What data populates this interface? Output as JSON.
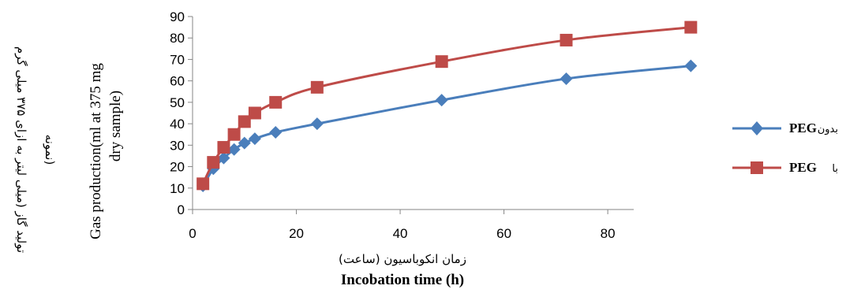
{
  "chart_data": {
    "type": "line",
    "title": "",
    "xlabel_fa": "زمان انکوباسیون (ساعت)",
    "xlabel_en": "Incobation time (h)",
    "ylabel_fa_line1": "تولید گاز (میلی لیتر به ازای ۳۷۵ میلی گرم",
    "ylabel_fa_line2": "نمونه)",
    "ylabel_en_line1": "Gas production(ml at 375 mg",
    "ylabel_en_line2": "dry sample)",
    "xlim": [
      0,
      85
    ],
    "ylim": [
      0,
      90
    ],
    "x_ticks": [
      0,
      20,
      40,
      60,
      80
    ],
    "y_ticks": [
      0,
      10,
      20,
      30,
      40,
      50,
      60,
      70,
      80,
      90
    ],
    "legend_position": "right",
    "series": [
      {
        "name": "PEG",
        "name_prefix_fa": "بدون",
        "color": "#4a7ebb",
        "marker": "diamond",
        "x": [
          2,
          4,
          6,
          8,
          10,
          12,
          16,
          24,
          48,
          72,
          96
        ],
        "y": [
          11,
          19,
          24,
          28,
          31,
          33,
          36,
          40,
          51,
          61,
          67
        ]
      },
      {
        "name": "PEG",
        "name_prefix_fa": "با",
        "color": "#be4b48",
        "marker": "square",
        "x": [
          2,
          4,
          6,
          8,
          10,
          12,
          16,
          24,
          48,
          72,
          96
        ],
        "y": [
          12,
          22,
          29,
          35,
          41,
          45,
          50,
          57,
          69,
          79,
          85
        ]
      }
    ]
  }
}
